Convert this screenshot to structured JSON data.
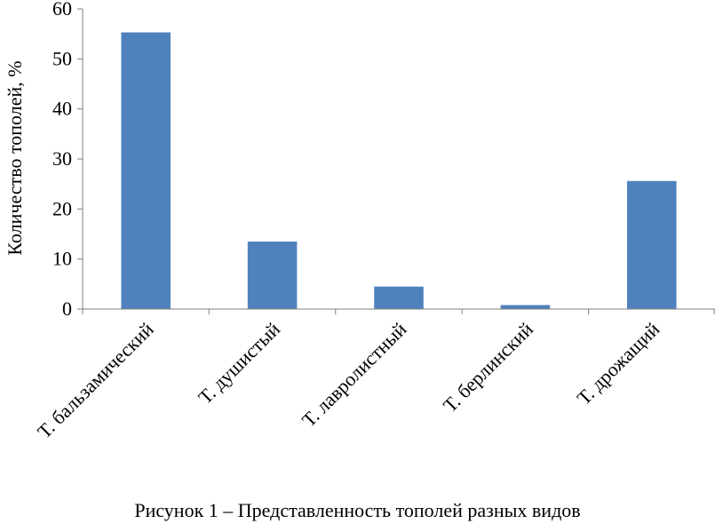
{
  "chart_data": {
    "type": "bar",
    "categories": [
      "Т. бальзамический",
      "Т. душистый",
      "Т. лавролистный",
      "Т. берлинский",
      "Т. дрожащий"
    ],
    "values": [
      55.3,
      13.5,
      4.5,
      0.8,
      25.6
    ],
    "ylabel": "Количество тополей, %",
    "xlabel": "",
    "ylim": [
      0,
      60
    ],
    "yticks": [
      0,
      10,
      20,
      30,
      40,
      50,
      60
    ],
    "bar_color": "#4f81bd",
    "grid": false,
    "legend": "none"
  },
  "caption": "Рисунок 1 – Представленность тополей разных видов"
}
